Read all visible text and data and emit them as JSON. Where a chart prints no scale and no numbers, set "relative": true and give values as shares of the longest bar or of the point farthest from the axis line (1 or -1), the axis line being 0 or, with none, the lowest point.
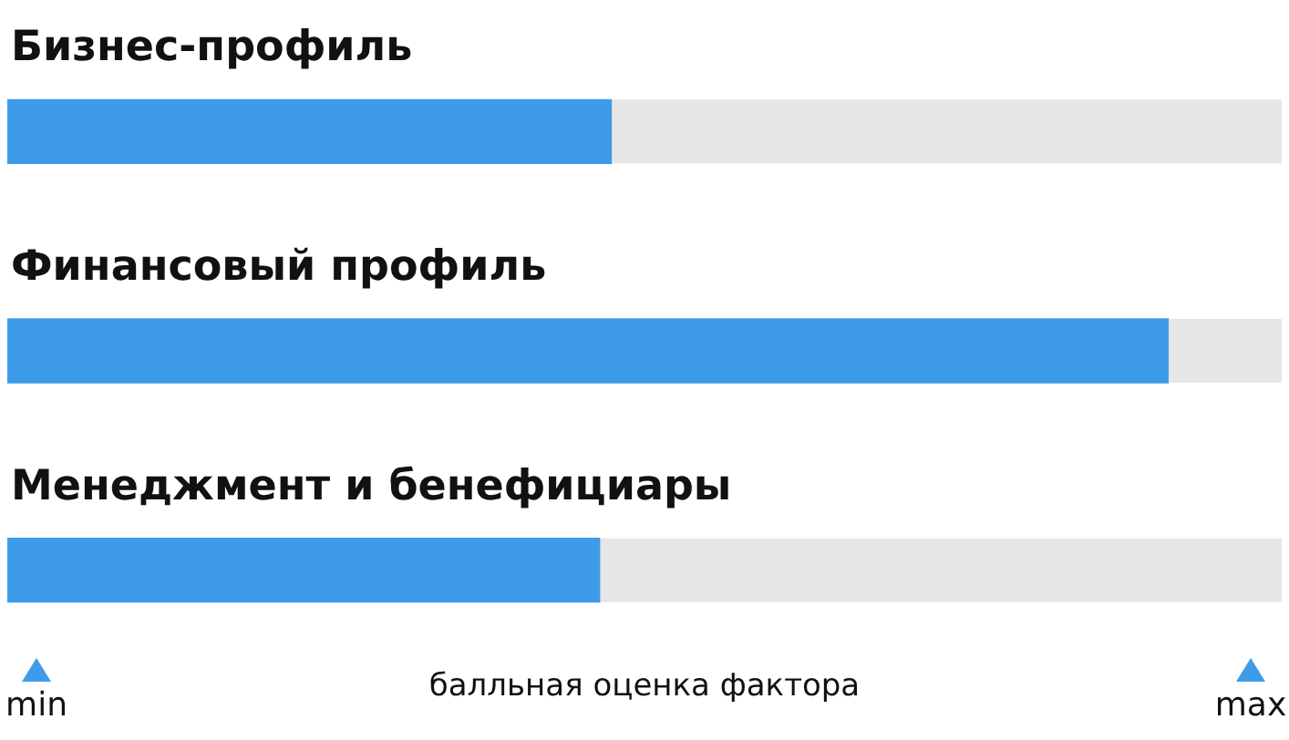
{
  "chart_data": {
    "type": "bar",
    "orientation": "horizontal",
    "relative": true,
    "categories": [
      "Бизнес-профиль",
      "Финансовый профиль",
      "Менеджмент и бенефициары"
    ],
    "values": [
      0.52,
      1,
      0.51
    ],
    "color": "#3d9be9",
    "xlabel": "балльная оценка фактора",
    "annotations": [
      "min",
      "max"
    ],
    "legend": false
  }
}
